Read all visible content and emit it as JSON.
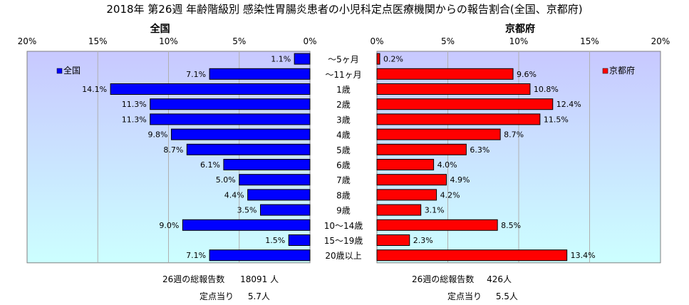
{
  "title": "2018年 第26週 年齢階級別 感染性胃腸炎患者の小児科定点医療機関からの報告割合(全国、京都府)",
  "colors": {
    "national": "#0000ff",
    "kyoto": "#ff0000",
    "plot_top": "#c8c8ff",
    "plot_bottom": "#ccffff"
  },
  "chart_data": [
    {
      "type": "bar",
      "orientation": "horizontal",
      "title": "全国",
      "legend": "全国",
      "legend_position": "top-left",
      "categories": [
        "〜5ヶ月",
        "〜11ヶ月",
        "1歳",
        "2歳",
        "3歳",
        "4歳",
        "5歳",
        "6歳",
        "7歳",
        "8歳",
        "9歳",
        "10〜14歳",
        "15〜19歳",
        "20歳以上"
      ],
      "values": [
        1.1,
        7.1,
        14.1,
        11.3,
        11.3,
        9.8,
        8.7,
        6.1,
        5.0,
        4.4,
        3.5,
        9.0,
        1.5,
        7.1
      ],
      "value_labels": [
        "1.1%",
        "7.1%",
        "14.1%",
        "11.3%",
        "11.3%",
        "9.8%",
        "8.7%",
        "6.1%",
        "5.0%",
        "4.4%",
        "3.5%",
        "9.0%",
        "1.5%",
        "7.1%"
      ],
      "xlim": [
        0,
        20
      ],
      "reversed": true,
      "ticks": [
        "20%",
        "15%",
        "10%",
        "5%",
        "0%"
      ],
      "grid": true
    },
    {
      "type": "bar",
      "orientation": "horizontal",
      "title": "京都府",
      "legend": "京都府",
      "legend_position": "top-right",
      "categories": [
        "〜5ヶ月",
        "〜11ヶ月",
        "1歳",
        "2歳",
        "3歳",
        "4歳",
        "5歳",
        "6歳",
        "7歳",
        "8歳",
        "9歳",
        "10〜14歳",
        "15〜19歳",
        "20歳以上"
      ],
      "values": [
        0.2,
        9.6,
        10.8,
        12.4,
        11.5,
        8.7,
        6.3,
        4.0,
        4.9,
        4.2,
        3.1,
        8.5,
        2.3,
        13.4
      ],
      "value_labels": [
        "0.2%",
        "9.6%",
        "10.8%",
        "12.4%",
        "11.5%",
        "8.7%",
        "6.3%",
        "4.0%",
        "4.9%",
        "4.2%",
        "3.1%",
        "8.5%",
        "2.3%",
        "13.4%"
      ],
      "xlim": [
        0,
        20
      ],
      "reversed": false,
      "ticks": [
        "0%",
        "5%",
        "10%",
        "15%",
        "20%"
      ],
      "grid": true
    }
  ],
  "footer": {
    "national_total_label": "26週の総報告数",
    "national_total_value": "18091 人",
    "national_per_label": "定点当り",
    "national_per_value": "5.7人",
    "kyoto_total_label": "26週の総報告数",
    "kyoto_total_value": "426人",
    "kyoto_per_label": "定点当り",
    "kyoto_per_value": "5.5人"
  }
}
